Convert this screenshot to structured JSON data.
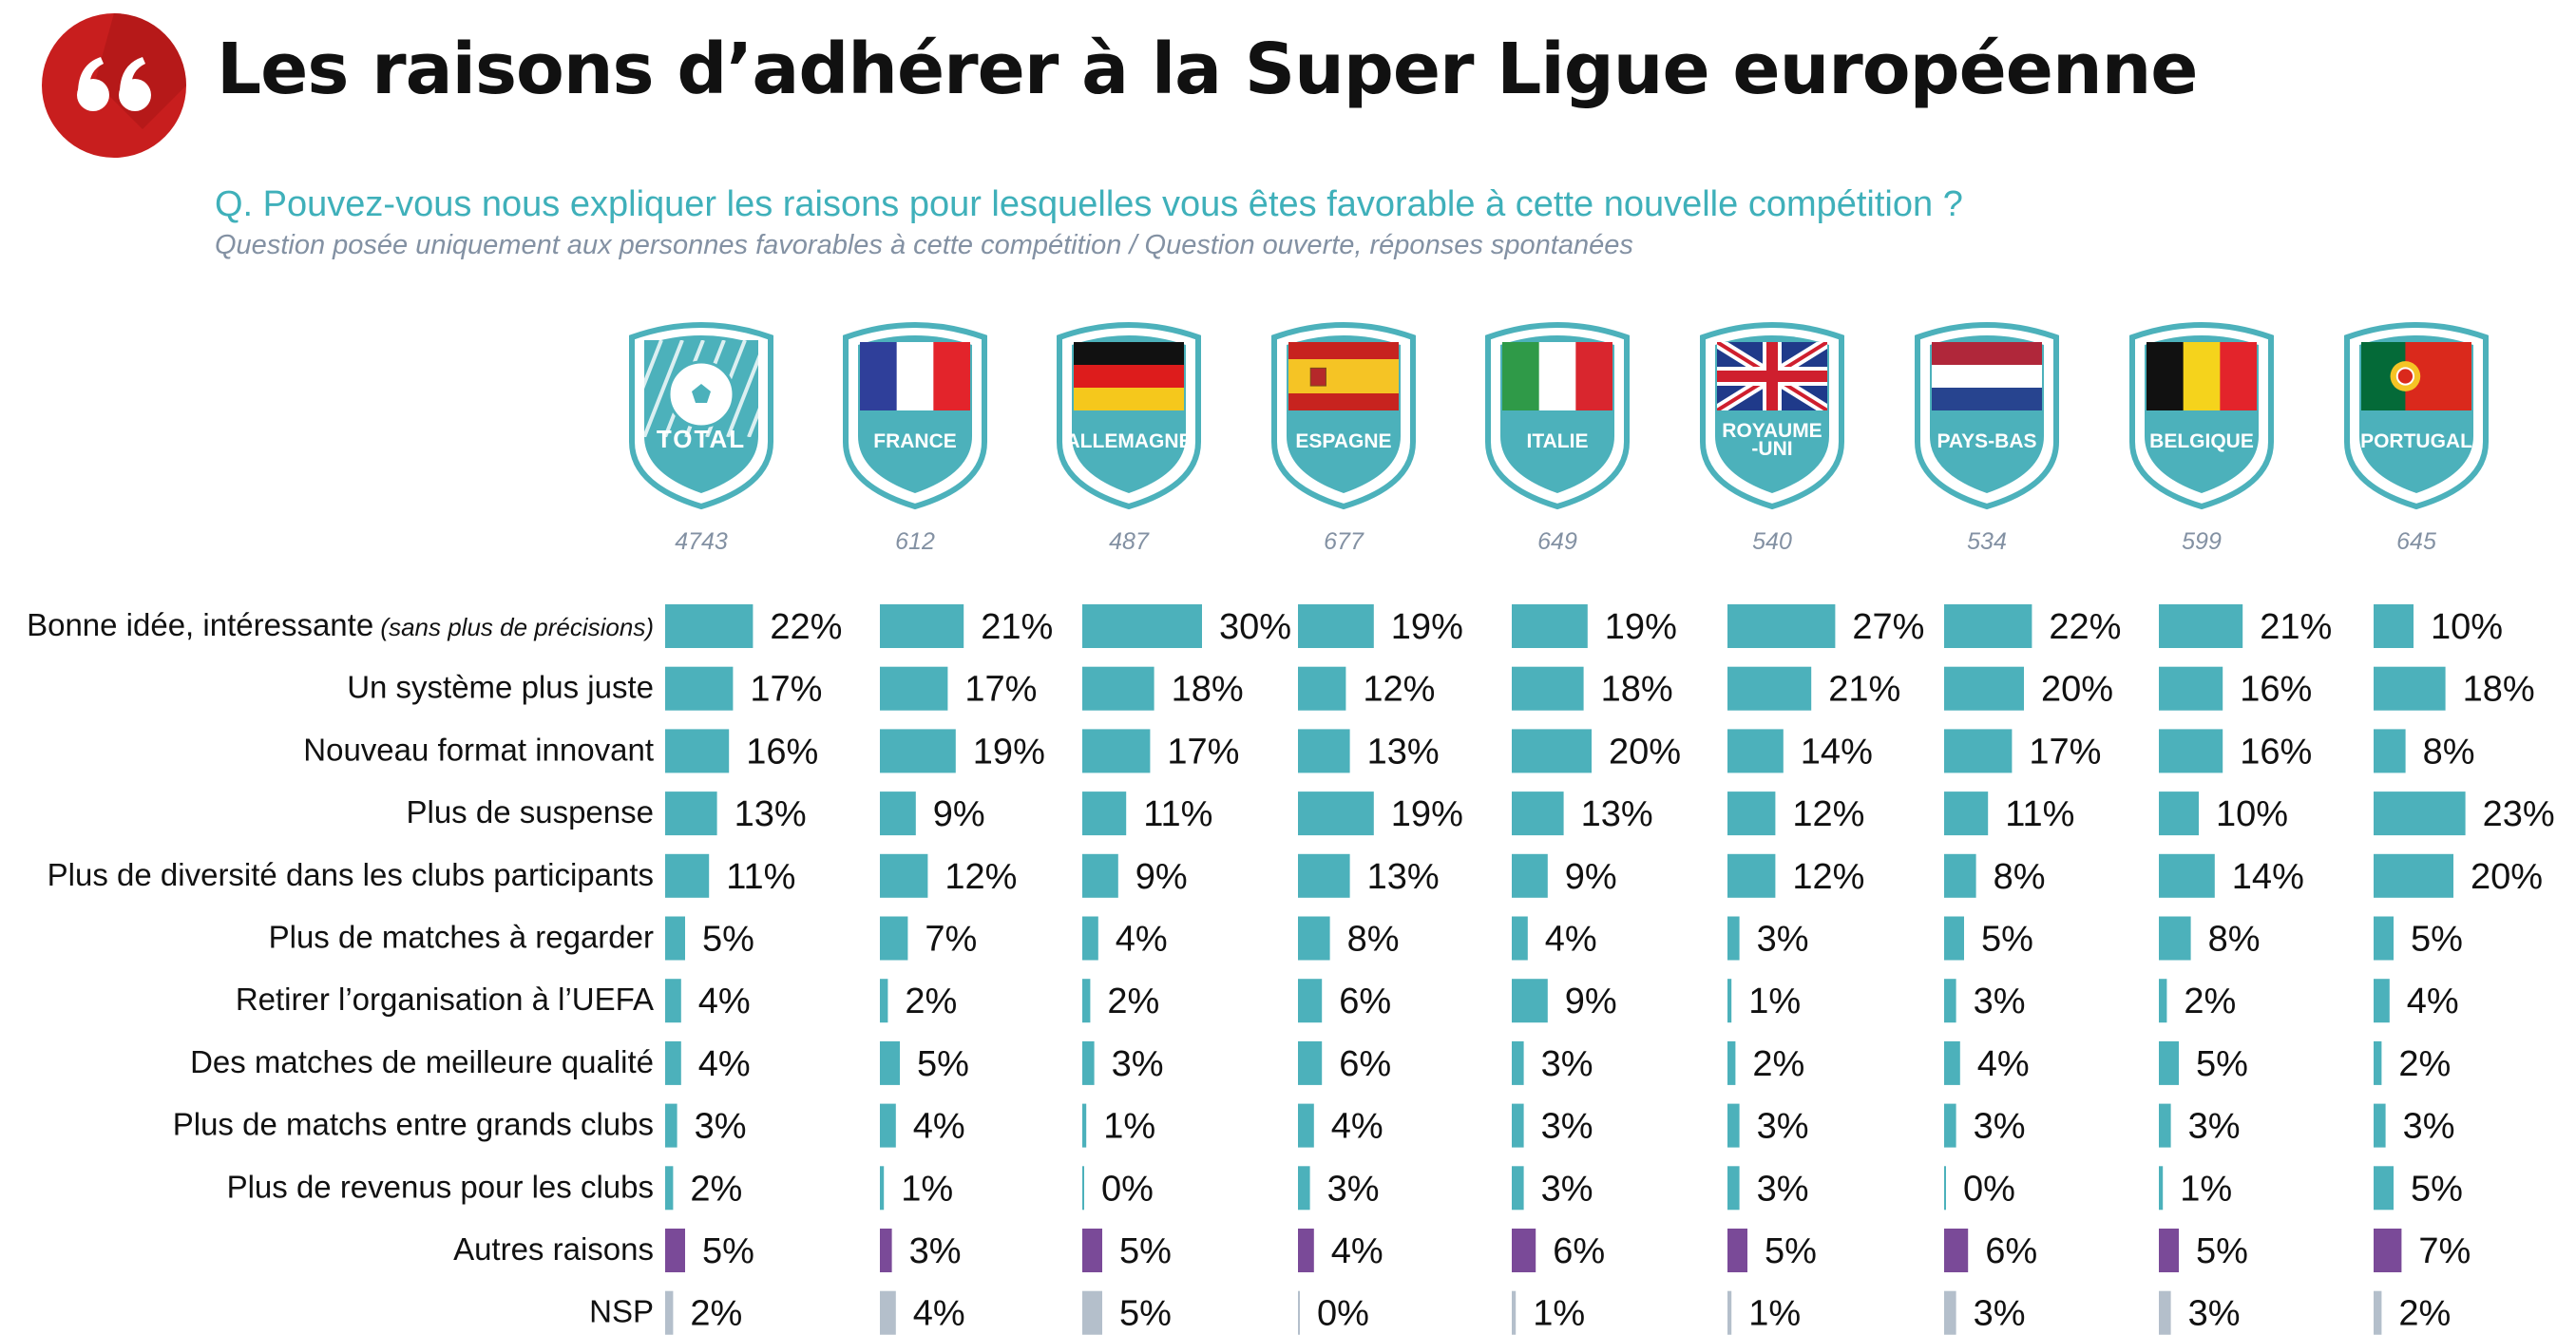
{
  "header": {
    "title": "Les raisons d’adhérer à la Super Ligue européenne",
    "question": "Q. Pouvez-vous nous expliquer les raisons pour lesquelles vous êtes favorable à cette nouvelle compétition ?",
    "subquestion": "Question posée uniquement aux personnes favorables à cette compétition / Question ouverte, réponses spontanées"
  },
  "colors": {
    "accent": "#c81e1e",
    "teal": "#4cb1bb",
    "purple": "#7a4a98",
    "gray": "#b4bfcb",
    "sample_text": "#8391a3",
    "question": "#3fb0ba"
  },
  "chart_data": {
    "type": "bar",
    "orientation": "horizontal-small-multiples",
    "title": "Les raisons d’adhérer à la Super Ligue européenne",
    "unit": "%",
    "xlim": [
      0,
      30
    ],
    "groups": [
      {
        "label": "TOTAL",
        "sample": "4743",
        "icon": "football-icon"
      },
      {
        "label": "FRANCE",
        "sample": "612",
        "icon": "flag-france-icon"
      },
      {
        "label": "ALLEMAGNE",
        "sample": "487",
        "icon": "flag-germany-icon"
      },
      {
        "label": "ESPAGNE",
        "sample": "677",
        "icon": "flag-spain-icon"
      },
      {
        "label": "ITALIE",
        "sample": "649",
        "icon": "flag-italy-icon"
      },
      {
        "label": "ROYAUME -UNI",
        "sample": "540",
        "icon": "flag-uk-icon"
      },
      {
        "label": "PAYS-BAS",
        "sample": "534",
        "icon": "flag-netherlands-icon"
      },
      {
        "label": "BELGIQUE",
        "sample": "599",
        "icon": "flag-belgium-icon"
      },
      {
        "label": "PORTUGAL",
        "sample": "645",
        "icon": "flag-portugal-icon"
      }
    ],
    "categories": [
      {
        "label": "Bonne idée, intéressante",
        "note": "(sans plus de précisions)",
        "color": "teal"
      },
      {
        "label": "Un système plus juste",
        "color": "teal"
      },
      {
        "label": "Nouveau format innovant",
        "color": "teal"
      },
      {
        "label": "Plus de suspense",
        "color": "teal"
      },
      {
        "label": "Plus de diversité dans les clubs participants",
        "color": "teal"
      },
      {
        "label": "Plus de matches à regarder",
        "color": "teal"
      },
      {
        "label": "Retirer l’organisation à l’UEFA",
        "color": "teal"
      },
      {
        "label": "Des matches de meilleure qualité",
        "color": "teal"
      },
      {
        "label": "Plus de matchs entre grands clubs",
        "color": "teal"
      },
      {
        "label": "Plus de revenus pour les clubs",
        "color": "teal"
      },
      {
        "label": "Autres raisons",
        "color": "purple"
      },
      {
        "label": "NSP",
        "color": "gray"
      }
    ],
    "values": [
      [
        22,
        21,
        30,
        19,
        19,
        27,
        22,
        21,
        10
      ],
      [
        17,
        17,
        18,
        12,
        18,
        21,
        20,
        16,
        18
      ],
      [
        16,
        19,
        17,
        13,
        20,
        14,
        17,
        16,
        8
      ],
      [
        13,
        9,
        11,
        19,
        13,
        12,
        11,
        10,
        23
      ],
      [
        11,
        12,
        9,
        13,
        9,
        12,
        8,
        14,
        20
      ],
      [
        5,
        7,
        4,
        8,
        4,
        3,
        5,
        8,
        5
      ],
      [
        4,
        2,
        2,
        6,
        9,
        1,
        3,
        2,
        4
      ],
      [
        4,
        5,
        3,
        6,
        3,
        2,
        4,
        5,
        2
      ],
      [
        3,
        4,
        1,
        4,
        3,
        3,
        3,
        3,
        3
      ],
      [
        2,
        1,
        0,
        3,
        3,
        3,
        0,
        1,
        5
      ],
      [
        5,
        3,
        5,
        4,
        6,
        5,
        6,
        5,
        7
      ],
      [
        2,
        4,
        5,
        0,
        1,
        1,
        3,
        3,
        2
      ]
    ]
  }
}
